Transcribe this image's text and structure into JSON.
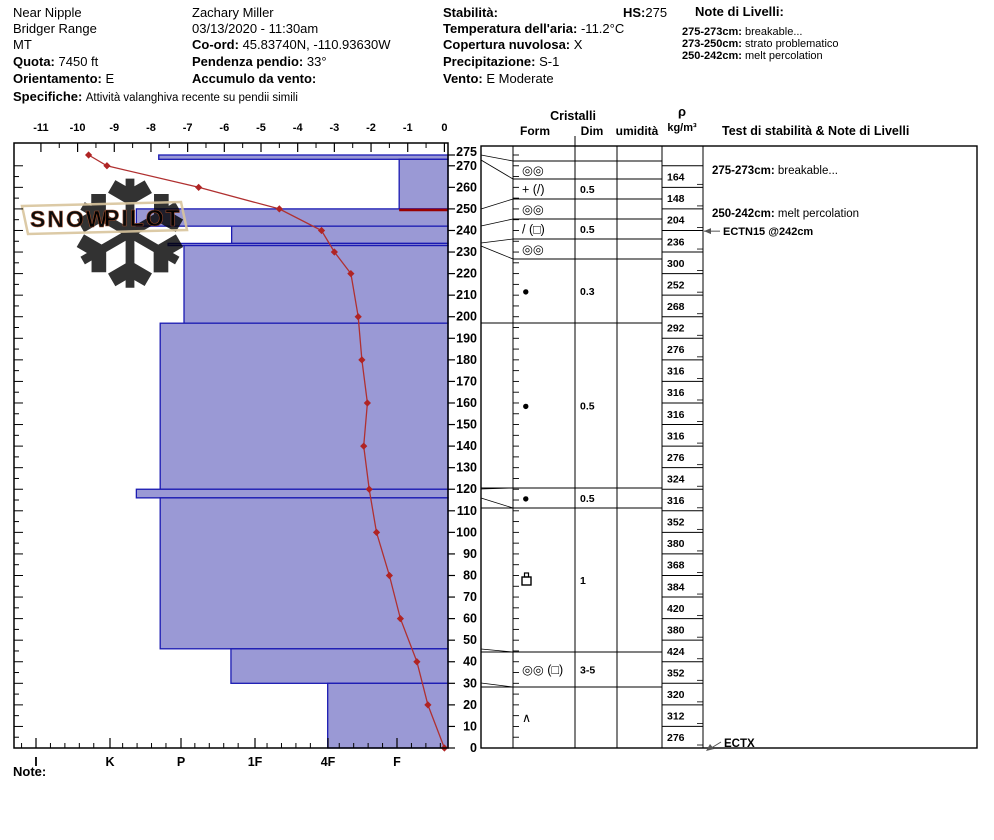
{
  "header": {
    "col1": {
      "site": "Near Nipple",
      "range": "Bridger Range",
      "state": "MT",
      "quota_label": "Quota:",
      "quota": "7450 ft",
      "orient_label": "Orientamento:",
      "orient": "E",
      "spec_label": "Specifiche:",
      "spec": "Attività valanghiva recente su pendii simili"
    },
    "col2": {
      "observer": "Zachary Miller",
      "datetime": "03/13/2020 - 11:30am",
      "coord_label": "Co-ord:",
      "coord": "45.83740N, -110.93630W",
      "slope_label": "Pendenza pendio:",
      "slope": "33°",
      "windload_label": "Accumulo da vento:",
      "windload": ""
    },
    "col3": {
      "stab_label": "Stabilità:",
      "stab": "",
      "hs_label": "HS:",
      "hs": "275",
      "airtemp_label": "Temperatura dell'aria:",
      "airtemp": "-11.2°C",
      "cloud_label": "Copertura nuvolosa:",
      "cloud": "X",
      "precip_label": "Precipitazione:",
      "precip": "S-1",
      "wind_label": "Vento:",
      "wind": "E Moderate"
    },
    "level_notes": {
      "title": "Note di Livelli:",
      "items": [
        {
          "label": "275-273cm:",
          "text": "breakable..."
        },
        {
          "label": "273-250cm:",
          "text": "strato problematico"
        },
        {
          "label": "250-242cm:",
          "text": "melt percolation"
        }
      ]
    }
  },
  "footer": {
    "note_label": "Note:"
  },
  "watermark": {
    "word1": "SNOW",
    "word2": "PILOT",
    "snowflake_glyph": "❆"
  },
  "chart_data": {
    "type": "bar",
    "subtype": "snow-pit-profile",
    "title": "Snow profile: hand hardness layers with temperature line, crystal table, density column",
    "temperature_axis": {
      "position": "top",
      "unit": "°C",
      "ticks": [
        -11,
        -10,
        -9,
        -8,
        -7,
        -6,
        -5,
        -4,
        -3,
        -2,
        -1,
        0
      ],
      "range": [
        -11,
        0
      ]
    },
    "hardness_axis": {
      "position": "bottom",
      "categories": [
        "I",
        "K",
        "P",
        "1F",
        "4F",
        "F"
      ]
    },
    "depth_axis": {
      "position": "right",
      "unit": "cm",
      "range": [
        0,
        275
      ],
      "tick_labels": [
        275,
        270,
        260,
        250,
        240,
        230,
        220,
        210,
        200,
        190,
        180,
        170,
        160,
        150,
        140,
        130,
        120,
        110,
        100,
        90,
        80,
        70,
        60,
        50,
        40,
        30,
        20,
        10,
        0
      ]
    },
    "hs_total_cm": 275,
    "layers": [
      {
        "top_cm": 275,
        "bottom_cm": 273,
        "hardness": "P+",
        "hardness_code": 4.3
      },
      {
        "top_cm": 273,
        "bottom_cm": 250,
        "hardness": "F",
        "hardness_code": 0.97
      },
      {
        "top_cm": 250,
        "bottom_cm": 242,
        "hardness": "K-",
        "hardness_code": 4.61
      },
      {
        "top_cm": 242,
        "bottom_cm": 234,
        "hardness": "1F",
        "hardness_code": 3.29
      },
      {
        "top_cm": 234,
        "bottom_cm": 233,
        "hardness": "P+",
        "hardness_code": 4.17
      },
      {
        "top_cm": 233,
        "bottom_cm": 197,
        "hardness": "P",
        "hardness_code": 3.95
      },
      {
        "top_cm": 197,
        "bottom_cm": 120,
        "hardness": "P+",
        "hardness_code": 4.28
      },
      {
        "top_cm": 120,
        "bottom_cm": 116,
        "hardness": "K-",
        "hardness_code": 4.61
      },
      {
        "top_cm": 116,
        "bottom_cm": 46,
        "hardness": "P+",
        "hardness_code": 4.28
      },
      {
        "top_cm": 46,
        "bottom_cm": 30,
        "hardness": "1F",
        "hardness_code": 3.3
      },
      {
        "top_cm": 30,
        "bottom_cm": 0,
        "hardness": "4F",
        "hardness_code": 1.96
      }
    ],
    "red_flag_layer_depth_cm": 250,
    "temperature_profile": [
      [
        275,
        -9.7
      ],
      [
        270,
        -9.2
      ],
      [
        260,
        -6.7
      ],
      [
        250,
        -4.5
      ],
      [
        240,
        -3.35
      ],
      [
        230,
        -3.0
      ],
      [
        220,
        -2.55
      ],
      [
        200,
        -2.35
      ],
      [
        180,
        -2.25
      ],
      [
        160,
        -2.1
      ],
      [
        140,
        -2.2
      ],
      [
        120,
        -2.05
      ],
      [
        100,
        -1.85
      ],
      [
        80,
        -1.5
      ],
      [
        60,
        -1.2
      ],
      [
        40,
        -0.75
      ],
      [
        20,
        -0.45
      ],
      [
        0,
        0
      ]
    ],
    "crystals": {
      "header": "Cristalli",
      "col_form": "Form",
      "col_dim": "Dim",
      "col_humidity": "umidità",
      "rows": [
        {
          "layer": "",
          "form": "",
          "form_name": "",
          "dim": ""
        },
        {
          "layer": "275-273",
          "form": "◎◎",
          "form_name": "melt-forms",
          "dim": ""
        },
        {
          "layer": "273-250",
          "form": "+ (/)",
          "form_name": "new-snow-decomposing",
          "dim": "0.5"
        },
        {
          "layer": "250-242",
          "form": "◎◎",
          "form_name": "melt-forms",
          "dim": ""
        },
        {
          "layer": "242-234",
          "form": "/ (□)",
          "form_name": "decomposing-facets",
          "dim": "0.5"
        },
        {
          "layer": "234-233",
          "form": "◎◎",
          "form_name": "melt-forms",
          "dim": ""
        },
        {
          "layer": "233-197",
          "form": "●",
          "form_name": "rounded-grains",
          "dim": "0.3"
        },
        {
          "layer": "197-120",
          "form": "●",
          "form_name": "rounded-grains",
          "dim": "0.5"
        },
        {
          "layer": "120-116",
          "form": "●",
          "form_name": "rounded-grains",
          "dim": "0.5"
        },
        {
          "layer": "116-46",
          "form": "",
          "form_name": "melt-freeze-crust",
          "dim": "1"
        },
        {
          "layer": "46-30",
          "form": "◎◎ (□)",
          "form_name": "melt-forms-facets",
          "dim": "3-5"
        },
        {
          "layer": "30-0",
          "form": "∧",
          "form_name": "depth-hoar",
          "dim": ""
        }
      ]
    },
    "density_column": {
      "header_symbol": "ρ",
      "header_unit": "kg/m³",
      "interval_cm": 10,
      "top_depth_cm": 270,
      "values": [
        164,
        148,
        204,
        236,
        300,
        252,
        268,
        292,
        276,
        316,
        316,
        316,
        316,
        276,
        324,
        316,
        352,
        380,
        368,
        384,
        420,
        380,
        424,
        352,
        320,
        312,
        276
      ]
    },
    "stability_column": {
      "header": "Test di stabilità & Note di Livelli",
      "notes": [
        {
          "label": "275-273cm:",
          "text": "breakable...",
          "depth_cm": 268,
          "arrow": ""
        },
        {
          "label": "250-242cm:",
          "text": "melt percolation",
          "depth_cm": 248,
          "arrow": ""
        },
        {
          "label": "ECTN15 @242cm",
          "text": "",
          "depth_cm": 242,
          "arrow": "left"
        },
        {
          "label": "ECTX",
          "text": "",
          "depth_cm": 0,
          "arrow": "corner"
        }
      ]
    },
    "colors": {
      "bar_fill": "#9a99d5",
      "bar_stroke": "#1a1ab2",
      "temp_line": "#b03030",
      "temp_marker": "#b02424",
      "red_flag": "#990000",
      "frame": "#000000",
      "watermark_flake": "#cdd9e6",
      "watermark_text": "#d9bf96",
      "watermark_outline": "#9a4a2a"
    }
  }
}
